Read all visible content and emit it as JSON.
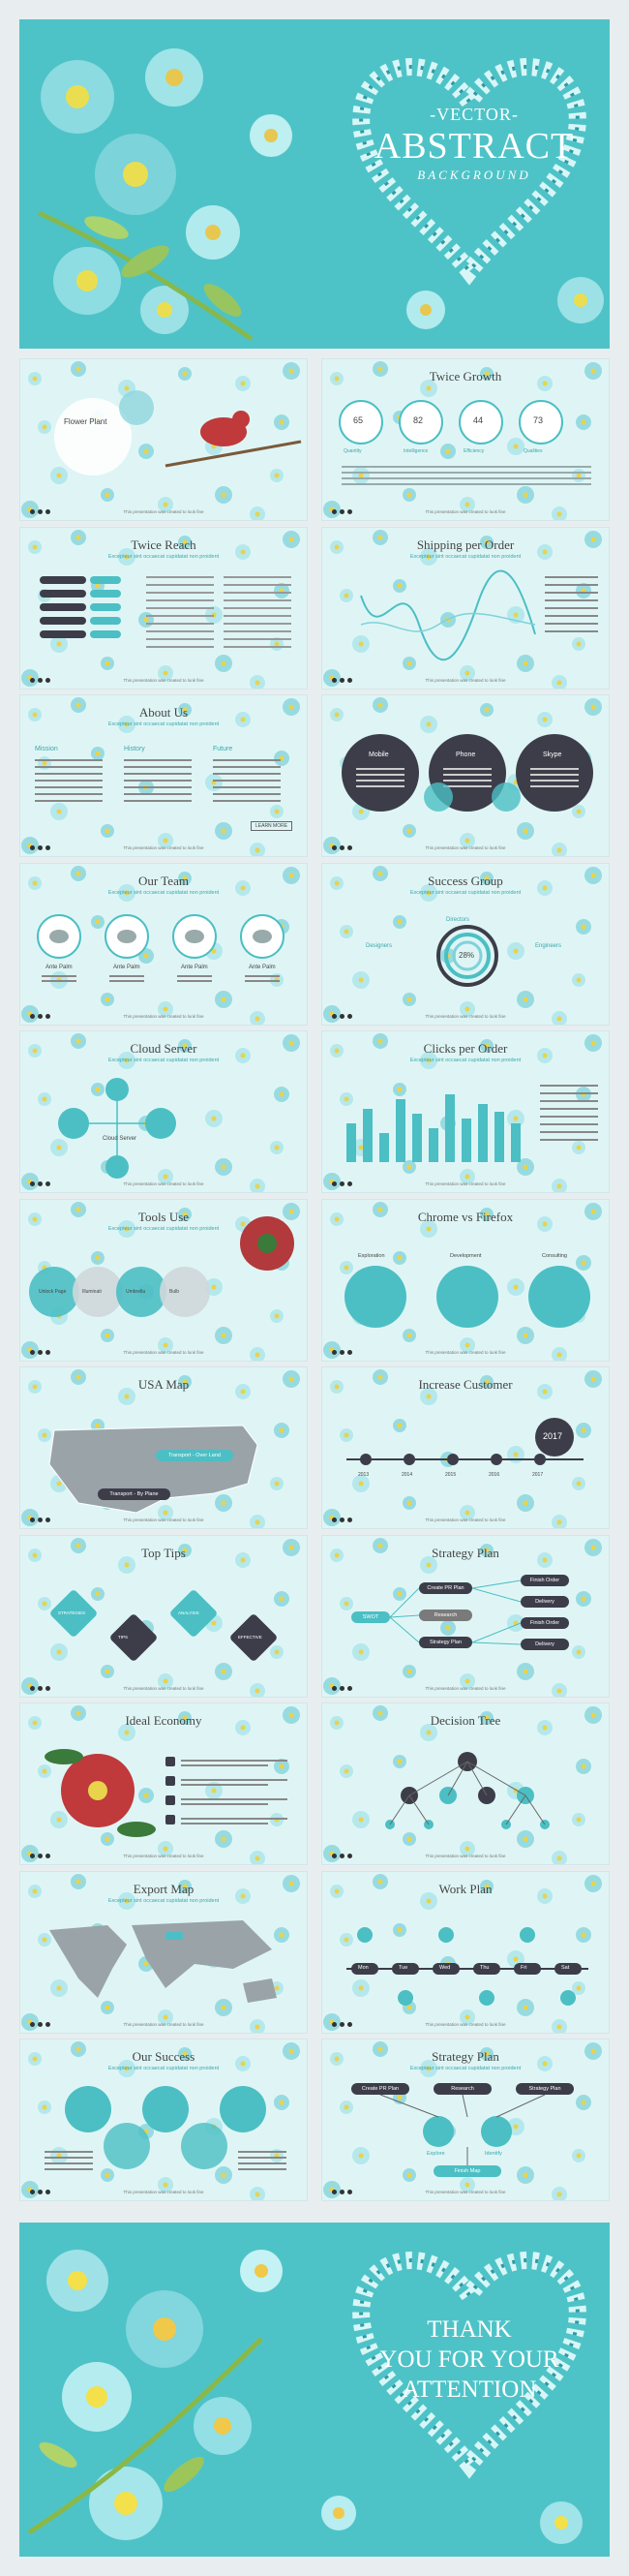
{
  "hero_top": {
    "small": "-VECTOR-",
    "big": "ABSTRACT",
    "script": "BACKGROUND"
  },
  "hero_bottom": {
    "line1": "THANK",
    "line2": "YOU FOR YOUR",
    "line3": "ATTENTION"
  },
  "footer": {
    "text": "This presentation was created to look fine"
  },
  "slides": [
    {
      "title": "",
      "extra": {
        "name": "Flower Plant"
      }
    },
    {
      "title": "Twice Growth",
      "extra": {
        "values": [
          "65",
          "82",
          "44",
          "73"
        ],
        "labels": [
          "Quantity",
          "Intelligence",
          "Efficiency",
          "Qualities"
        ]
      }
    },
    {
      "title": "Twice Reach",
      "sub": "Excepteur sint occaecat cupidatat non proident"
    },
    {
      "title": "Shipping per Order",
      "sub": "Excepteur sint occaecat cupidatat non proident"
    },
    {
      "title": "About Us",
      "sub": "Excepteur sint occaecat cupidatat non proident",
      "extra": {
        "cols": [
          "Mission",
          "History",
          "Future"
        ],
        "btn": "LEARN MORE"
      }
    },
    {
      "title": "",
      "extra": {
        "circles": [
          "Mobile",
          "Phone",
          "Skype"
        ]
      }
    },
    {
      "title": "Our Team",
      "sub": "Excepteur sint occaecat cupidatat non proident",
      "extra": {
        "names": [
          "Ante Palm",
          "Ante Palm",
          "Ante Palm",
          "Ante Palm"
        ]
      }
    },
    {
      "title": "Success Group",
      "sub": "Excepteur sint occaecat cupidatat non proident",
      "extra": {
        "center": "28%",
        "l": "Designers",
        "t": "Directors",
        "r": "Engineers"
      }
    },
    {
      "title": "Cloud Server",
      "sub": "Excepteur sint occaecat cupidatat non proident",
      "extra": {
        "label": "Cloud Server"
      }
    },
    {
      "title": "Clicks per Order",
      "sub": "Excepteur sint occaecat cupidatat non proident"
    },
    {
      "title": "Tools Use",
      "sub": "Excepteur sint occaecat cupidatat non proident",
      "extra": {
        "items": [
          "Unlock Page",
          "Illuminati",
          "Umbrella",
          "Bulb"
        ]
      }
    },
    {
      "title": "Chrome vs Firefox",
      "extra": {
        "steps": [
          "Exploration",
          "Development",
          "Consulting"
        ]
      }
    },
    {
      "title": "USA Map",
      "extra": {
        "tags": [
          "Transport - Over Land",
          "Transport - By Plane"
        ]
      }
    },
    {
      "title": "Increase Customer",
      "extra": {
        "years": [
          "2013",
          "2014",
          "2015",
          "2016",
          "2017"
        ],
        "big": "2017"
      }
    },
    {
      "title": "Top Tips",
      "extra": {
        "tips": [
          "STRATEGIES",
          "TIPS",
          "ANALYSIS",
          "EFFECTIVE"
        ]
      }
    },
    {
      "title": "Strategy Plan",
      "extra": {
        "left": "SWOT",
        "mid": [
          "Create PR Plan",
          "Research",
          "Strategy Plan"
        ],
        "right": [
          "Finish Order",
          "Delivery",
          "Finish Order",
          "Delivery"
        ]
      }
    },
    {
      "title": "Ideal Economy"
    },
    {
      "title": "Decision Tree"
    },
    {
      "title": "Export Map",
      "sub": "Excepteur sint occaecat cupidatat non proident"
    },
    {
      "title": "Work Plan",
      "extra": {
        "days": [
          "Mon",
          "Tue",
          "Wed",
          "Thu",
          "Fri",
          "Sat"
        ]
      }
    },
    {
      "title": "Our Success",
      "sub": "Excepteur sint occaecat cupidatat non proident"
    },
    {
      "title": "Strategy Plan",
      "sub": "Excepteur sint occaecat cupidatat non proident",
      "extra": {
        "top": [
          "Create PR Plan",
          "Research",
          "Strategy Plan"
        ],
        "mid": [
          "Explore",
          "Identify"
        ],
        "bottom": "Finish Map"
      }
    }
  ]
}
